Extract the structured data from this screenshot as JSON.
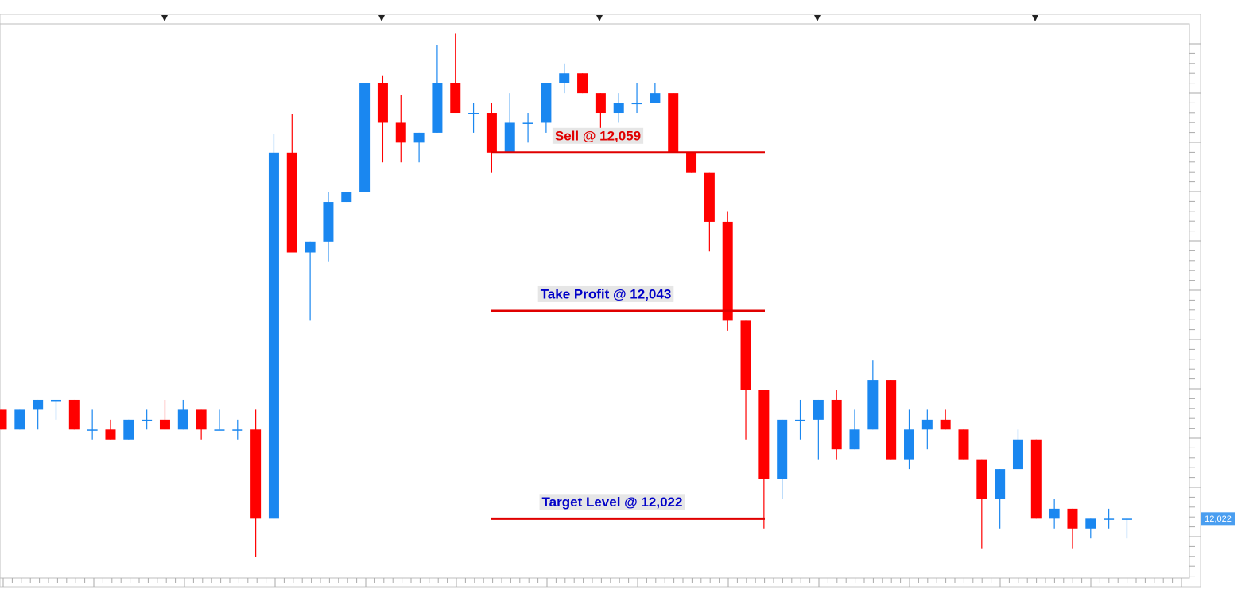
{
  "chart_data": {
    "type": "candlestick",
    "up_color": "#1a87f0",
    "down_color": "#ff0000",
    "ylim": [
      12016,
      12072
    ],
    "open": [
      12033,
      12031,
      12033,
      12034,
      12034,
      12031,
      12031,
      12030,
      12032,
      12032,
      12031,
      12033,
      12031,
      12031,
      12031,
      12022,
      12059,
      12048.9,
      12050,
      12054,
      12055,
      12066,
      12062,
      12060,
      12061,
      12066,
      12063,
      12063,
      12059,
      12062,
      12062,
      12066,
      12067,
      12065,
      12063,
      12064,
      12064,
      12065,
      12059,
      12057,
      12052,
      12042,
      12035,
      12026,
      12032,
      12032,
      12034,
      12029,
      12031,
      12036,
      12028,
      12031,
      12032,
      12031,
      12028,
      12024,
      12027,
      12030,
      12022,
      12023,
      12021,
      12022,
      12022
    ],
    "high": [
      12033,
      12033,
      12034,
      12034,
      12034,
      12033,
      12032,
      12032,
      12033,
      12034,
      12034,
      12033,
      12033,
      12032,
      12033,
      12060.9,
      12062.9,
      12050,
      12055,
      12055,
      12066,
      12066.8,
      12064.8,
      12061,
      12069.9,
      12071,
      12064,
      12064,
      12065,
      12063,
      12066,
      12068,
      12067,
      12065,
      12065,
      12066,
      12066,
      12065,
      12059,
      12057,
      12053,
      12042,
      12035,
      12032,
      12034,
      12034,
      12035,
      12033,
      12038,
      12036,
      12033,
      12033,
      12033,
      12031,
      12028,
      12027,
      12031,
      12030,
      12024,
      12023,
      12022,
      12023,
      12022
    ],
    "low": [
      12031,
      12031,
      12031,
      12032,
      12031,
      12030,
      12030,
      12030,
      12031,
      12031,
      12031,
      12030,
      12031,
      12030,
      12018.1,
      12022,
      12048.9,
      12042,
      12048,
      12054,
      12055,
      12058,
      12058,
      12058,
      12061,
      12063,
      12061,
      12057,
      12059,
      12060,
      12061,
      12065,
      12065,
      12061,
      12062,
      12063,
      12064,
      12059,
      12057,
      12049,
      12041,
      12030,
      12021,
      12024,
      12030,
      12028,
      12028,
      12029,
      12031,
      12028,
      12027,
      12029,
      12031,
      12028,
      12019,
      12021,
      12027,
      12022,
      12021,
      12019,
      12020,
      12021,
      12020
    ],
    "close": [
      12031,
      12033,
      12034,
      12034,
      12031,
      12031,
      12030,
      12032,
      12032,
      12031,
      12033,
      12031,
      12031,
      12031,
      12022,
      12059,
      12048.9,
      12050,
      12054,
      12055,
      12066,
      12062,
      12060,
      12061,
      12066,
      12063,
      12063,
      12059,
      12062,
      12062,
      12066,
      12067,
      12065,
      12063,
      12064,
      12064,
      12065,
      12059,
      12057,
      12052,
      12042,
      12035,
      12026,
      12032,
      12032,
      12034,
      12029,
      12031,
      12036,
      12028,
      12031,
      12032,
      12031,
      12028,
      12024,
      12027,
      12030,
      12022,
      12023,
      12021,
      12022,
      12022,
      12022
    ],
    "annotations": [
      {
        "text": "Sell @ 12,059",
        "value": 12059,
        "color": "#e00000"
      },
      {
        "text": "Take Profit @ 12,043",
        "value": 12043,
        "color": "#0000c8"
      },
      {
        "text": "Target Level @ 12,022",
        "value": 12022,
        "color": "#0000c8"
      }
    ],
    "line_color": "#e00000",
    "last_price": {
      "value": 12022,
      "label": "12,022"
    }
  }
}
